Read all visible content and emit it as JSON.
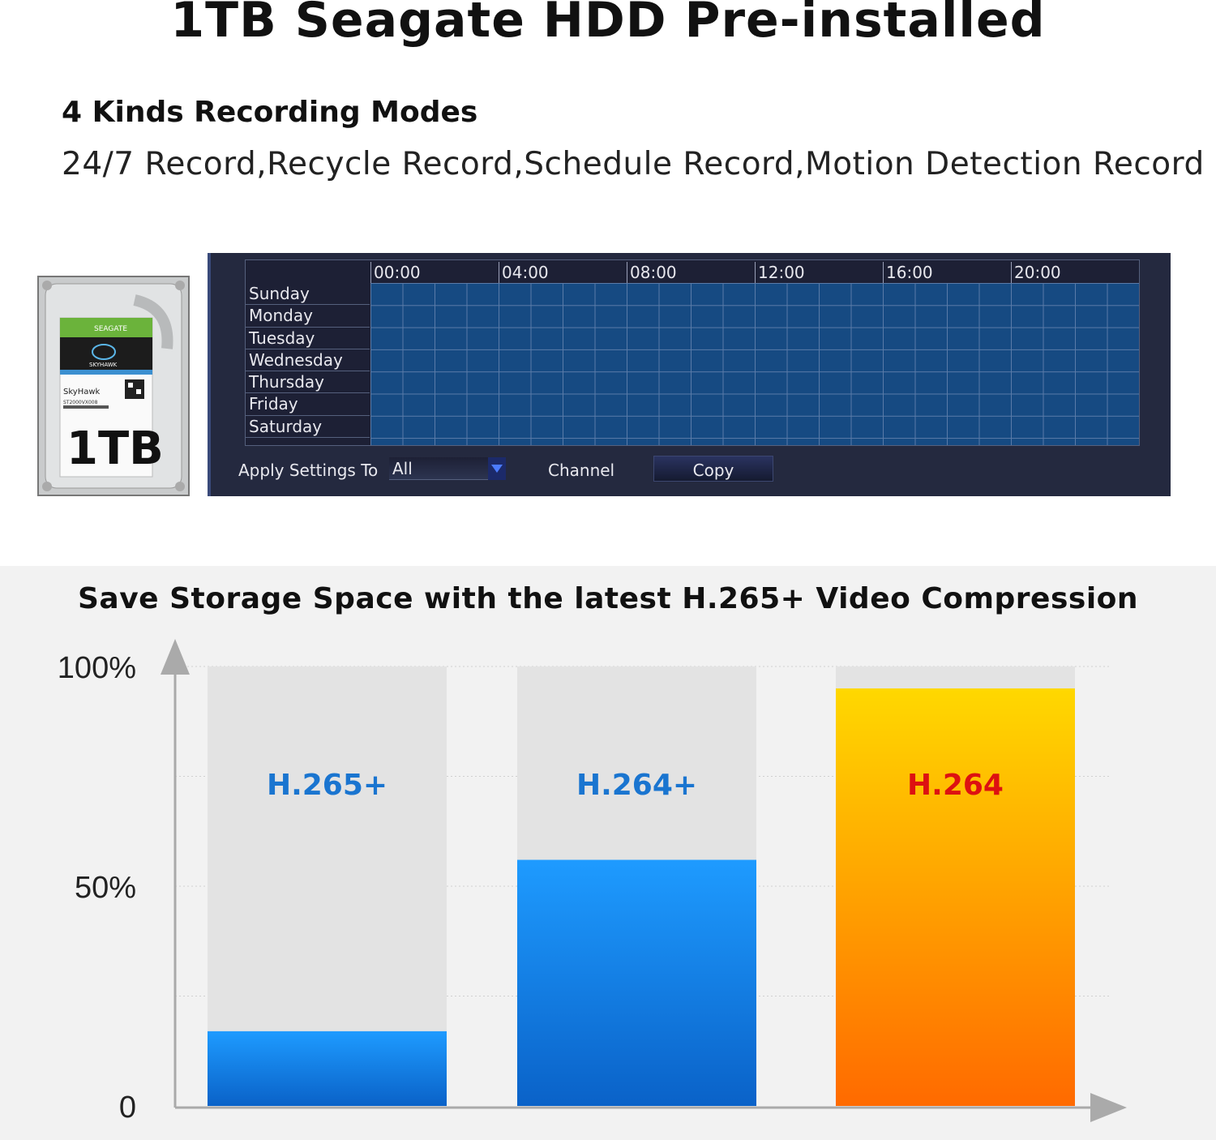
{
  "header": {
    "title": "1TB Seagate HDD Pre-installed",
    "subtitle": "4 Kinds Recording Modes",
    "modes": "24/7 Record,Recycle Record,Schedule Record,Motion Detection Record"
  },
  "hdd": {
    "brand": "SEAGATE",
    "model_line": "SKYHAWK",
    "name": "SkyHawk",
    "part": "ST2000VX008",
    "capacity": "1TB"
  },
  "schedule": {
    "times": [
      "00:00",
      "04:00",
      "08:00",
      "12:00",
      "16:00",
      "20:00"
    ],
    "days": [
      "Sunday",
      "Monday",
      "Tuesday",
      "Wednesday",
      "Thursday",
      "Friday",
      "Saturday"
    ],
    "apply_label": "Apply Settings To",
    "apply_value": "All",
    "channel_label": "Channel",
    "copy_label": "Copy"
  },
  "chart_title": "Save Storage Space with the latest H.265+ Video Compression",
  "chart_data": {
    "type": "bar",
    "categories": [
      "H.265+",
      "H.264+",
      "H.264"
    ],
    "values": [
      17,
      56,
      95
    ],
    "yticks": [
      "100%",
      "50%",
      "0"
    ],
    "ylim": [
      0,
      100
    ],
    "grid": true,
    "colors": {
      "H.265+": "#1e90ff",
      "H.264+": "#1e90ff",
      "H.264": "#ffb000",
      "label_blue": "#1a75d0",
      "label_red": "#dd1111",
      "track": "#e3e3e3"
    }
  }
}
